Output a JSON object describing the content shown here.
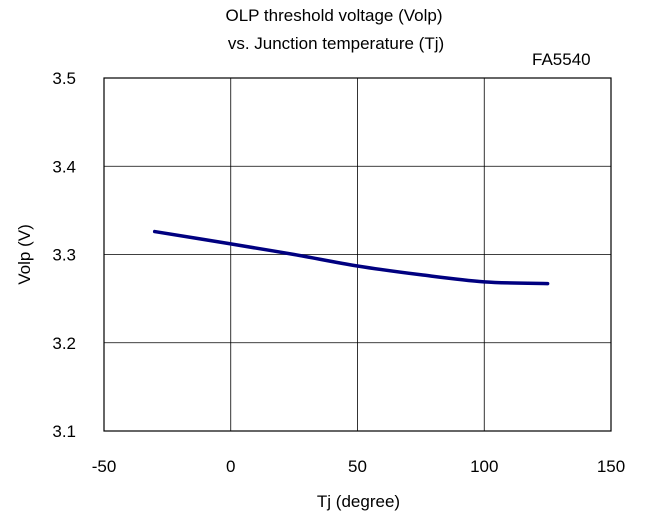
{
  "title_line1": "OLP threshold voltage (Volp)",
  "title_line2": "vs. Junction temperature (Tj)",
  "model_label": "FA5540",
  "chart_data": {
    "type": "line",
    "title": "OLP threshold voltage (Volp) vs. Junction temperature (Tj)",
    "xlabel": "Tj (degree)",
    "ylabel": "Volp (V)",
    "xlim": [
      -50,
      150
    ],
    "ylim": [
      3.1,
      3.5
    ],
    "xticks": [
      -50,
      0,
      50,
      100,
      150
    ],
    "yticks": [
      3.1,
      3.2,
      3.3,
      3.4,
      3.5
    ],
    "grid": true,
    "line_color": "#000080",
    "series": [
      {
        "x": [
          -30,
          0,
          25,
          50,
          75,
          100,
          125
        ],
        "y": [
          3.326,
          3.312,
          3.3,
          3.287,
          3.277,
          3.269,
          3.267
        ]
      }
    ]
  }
}
